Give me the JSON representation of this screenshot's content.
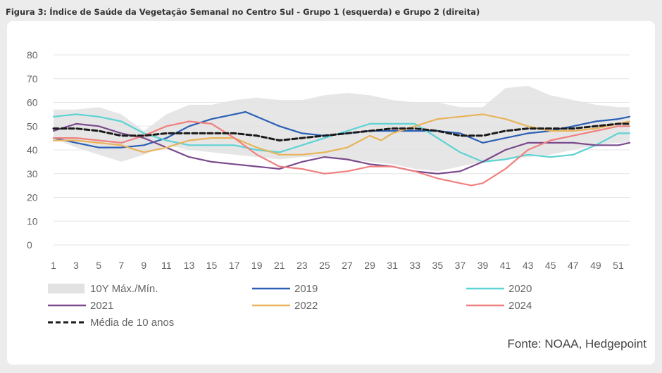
{
  "title": "Figura 3: Índice de Saúde da Vegetação Semanal no Centro Sul - Grupo 1 (esquerda) e Grupo 2 (direita)",
  "source": "Fonte: NOAA, Hedgepoint",
  "chart_data": {
    "type": "line",
    "xlim": [
      1,
      52
    ],
    "ylim": [
      0,
      80
    ],
    "x_ticks": [
      1,
      3,
      5,
      7,
      9,
      11,
      13,
      15,
      17,
      19,
      21,
      23,
      25,
      27,
      29,
      31,
      33,
      35,
      37,
      39,
      41,
      43,
      45,
      47,
      49,
      51
    ],
    "y_ticks": [
      0,
      10,
      20,
      30,
      40,
      50,
      60,
      70,
      80
    ],
    "grid": true,
    "band": {
      "name": "10Y Máx./Mín.",
      "color": "#e2e2e2",
      "upper": [
        [
          1,
          57
        ],
        [
          3,
          57
        ],
        [
          5,
          58
        ],
        [
          7,
          55
        ],
        [
          9,
          48
        ],
        [
          11,
          55
        ],
        [
          13,
          59
        ],
        [
          15,
          59
        ],
        [
          17,
          61
        ],
        [
          19,
          62
        ],
        [
          21,
          61
        ],
        [
          23,
          61
        ],
        [
          25,
          63
        ],
        [
          27,
          64
        ],
        [
          29,
          63
        ],
        [
          31,
          61
        ],
        [
          33,
          60
        ],
        [
          35,
          60
        ],
        [
          37,
          58
        ],
        [
          39,
          58
        ],
        [
          41,
          66
        ],
        [
          43,
          67
        ],
        [
          45,
          63
        ],
        [
          47,
          61
        ],
        [
          49,
          59
        ],
        [
          51,
          58
        ],
        [
          52,
          58
        ]
      ],
      "lower": [
        [
          1,
          45
        ],
        [
          3,
          41
        ],
        [
          5,
          38
        ],
        [
          7,
          35
        ],
        [
          9,
          38
        ],
        [
          11,
          42
        ],
        [
          13,
          40
        ],
        [
          15,
          39
        ],
        [
          17,
          38
        ],
        [
          19,
          37
        ],
        [
          21,
          36
        ],
        [
          23,
          37
        ],
        [
          25,
          37
        ],
        [
          27,
          36
        ],
        [
          29,
          35
        ],
        [
          31,
          34
        ],
        [
          33,
          32
        ],
        [
          35,
          31
        ],
        [
          37,
          33
        ],
        [
          39,
          35
        ],
        [
          41,
          36
        ],
        [
          43,
          37
        ],
        [
          45,
          38
        ],
        [
          47,
          40
        ],
        [
          49,
          42
        ],
        [
          51,
          43
        ],
        [
          52,
          43
        ]
      ]
    },
    "series": [
      {
        "name": "2019",
        "color": "#2b5fb4",
        "values": [
          [
            1,
            45
          ],
          [
            3,
            43
          ],
          [
            5,
            41
          ],
          [
            7,
            41
          ],
          [
            9,
            42
          ],
          [
            11,
            45
          ],
          [
            13,
            50
          ],
          [
            15,
            53
          ],
          [
            17,
            55
          ],
          [
            18,
            56
          ],
          [
            19,
            54
          ],
          [
            21,
            50
          ],
          [
            23,
            47
          ],
          [
            25,
            46
          ],
          [
            27,
            47
          ],
          [
            29,
            48
          ],
          [
            31,
            48
          ],
          [
            33,
            48
          ],
          [
            35,
            48
          ],
          [
            37,
            47
          ],
          [
            39,
            43
          ],
          [
            41,
            45
          ],
          [
            43,
            47
          ],
          [
            45,
            48
          ],
          [
            47,
            50
          ],
          [
            49,
            52
          ],
          [
            51,
            53
          ],
          [
            52,
            54
          ]
        ]
      },
      {
        "name": "2020",
        "color": "#5ed3d3",
        "values": [
          [
            1,
            54
          ],
          [
            3,
            55
          ],
          [
            5,
            54
          ],
          [
            7,
            52
          ],
          [
            9,
            47
          ],
          [
            11,
            44
          ],
          [
            13,
            42
          ],
          [
            15,
            42
          ],
          [
            17,
            42
          ],
          [
            19,
            40
          ],
          [
            21,
            39
          ],
          [
            23,
            42
          ],
          [
            25,
            45
          ],
          [
            27,
            48
          ],
          [
            29,
            51
          ],
          [
            31,
            51
          ],
          [
            33,
            51
          ],
          [
            35,
            45
          ],
          [
            37,
            39
          ],
          [
            39,
            35
          ],
          [
            41,
            36
          ],
          [
            43,
            38
          ],
          [
            45,
            37
          ],
          [
            47,
            38
          ],
          [
            49,
            42
          ],
          [
            51,
            47
          ],
          [
            52,
            47
          ]
        ]
      },
      {
        "name": "2021",
        "color": "#7a4a8c",
        "values": [
          [
            1,
            48
          ],
          [
            3,
            51
          ],
          [
            5,
            50
          ],
          [
            7,
            47
          ],
          [
            9,
            45
          ],
          [
            11,
            41
          ],
          [
            13,
            37
          ],
          [
            15,
            35
          ],
          [
            17,
            34
          ],
          [
            19,
            33
          ],
          [
            21,
            32
          ],
          [
            23,
            35
          ],
          [
            25,
            37
          ],
          [
            27,
            36
          ],
          [
            29,
            34
          ],
          [
            31,
            33
          ],
          [
            33,
            31
          ],
          [
            35,
            30
          ],
          [
            37,
            31
          ],
          [
            39,
            35
          ],
          [
            41,
            40
          ],
          [
            43,
            43
          ],
          [
            45,
            43
          ],
          [
            47,
            43
          ],
          [
            49,
            42
          ],
          [
            51,
            42
          ],
          [
            52,
            43
          ]
        ]
      },
      {
        "name": "2022",
        "color": "#e8b35a",
        "values": [
          [
            1,
            44
          ],
          [
            3,
            44
          ],
          [
            5,
            43
          ],
          [
            7,
            42
          ],
          [
            9,
            39
          ],
          [
            11,
            41
          ],
          [
            13,
            44
          ],
          [
            15,
            45
          ],
          [
            17,
            45
          ],
          [
            19,
            41
          ],
          [
            21,
            38
          ],
          [
            23,
            38
          ],
          [
            25,
            39
          ],
          [
            27,
            41
          ],
          [
            29,
            46
          ],
          [
            30,
            44
          ],
          [
            31,
            47
          ],
          [
            33,
            50
          ],
          [
            35,
            53
          ],
          [
            37,
            54
          ],
          [
            39,
            55
          ],
          [
            41,
            53
          ],
          [
            43,
            50
          ],
          [
            45,
            48
          ],
          [
            47,
            48
          ],
          [
            49,
            49
          ],
          [
            51,
            51
          ],
          [
            52,
            52
          ]
        ]
      },
      {
        "name": "2024",
        "color": "#f08080",
        "values": [
          [
            1,
            45
          ],
          [
            3,
            45
          ],
          [
            5,
            44
          ],
          [
            7,
            43
          ],
          [
            9,
            46
          ],
          [
            11,
            50
          ],
          [
            13,
            52
          ],
          [
            15,
            51
          ],
          [
            17,
            45
          ],
          [
            19,
            38
          ],
          [
            21,
            33
          ],
          [
            23,
            32
          ],
          [
            25,
            30
          ],
          [
            27,
            31
          ],
          [
            29,
            33
          ],
          [
            31,
            33
          ],
          [
            33,
            31
          ],
          [
            35,
            28
          ],
          [
            37,
            26
          ],
          [
            38,
            25
          ],
          [
            39,
            26
          ],
          [
            41,
            32
          ],
          [
            43,
            40
          ],
          [
            45,
            44
          ],
          [
            47,
            46
          ],
          [
            49,
            48
          ],
          [
            51,
            50
          ],
          [
            52,
            50
          ]
        ]
      },
      {
        "name": "Média de 10 anos",
        "color": "#1a1a1a",
        "dashed": true,
        "values": [
          [
            1,
            49
          ],
          [
            3,
            49
          ],
          [
            5,
            48
          ],
          [
            7,
            46
          ],
          [
            9,
            46
          ],
          [
            11,
            47
          ],
          [
            13,
            47
          ],
          [
            15,
            47
          ],
          [
            17,
            47
          ],
          [
            19,
            46
          ],
          [
            21,
            44
          ],
          [
            23,
            45
          ],
          [
            25,
            46
          ],
          [
            27,
            47
          ],
          [
            29,
            48
          ],
          [
            31,
            49
          ],
          [
            33,
            49
          ],
          [
            35,
            48
          ],
          [
            37,
            46
          ],
          [
            39,
            46
          ],
          [
            41,
            48
          ],
          [
            43,
            49
          ],
          [
            45,
            49
          ],
          [
            47,
            49
          ],
          [
            49,
            50
          ],
          [
            51,
            51
          ],
          [
            52,
            51
          ]
        ]
      }
    ],
    "legend": [
      {
        "label": "10Y Máx./Mín.",
        "kind": "band",
        "color": "#e2e2e2"
      },
      {
        "label": "2019",
        "kind": "line",
        "color": "#2b5fb4"
      },
      {
        "label": "2020",
        "kind": "line",
        "color": "#5ed3d3"
      },
      {
        "label": "2021",
        "kind": "line",
        "color": "#7a4a8c"
      },
      {
        "label": "2022",
        "kind": "line",
        "color": "#e8b35a"
      },
      {
        "label": "2024",
        "kind": "line",
        "color": "#f08080"
      },
      {
        "label": "Média de 10 anos",
        "kind": "dashed",
        "color": "#1a1a1a"
      }
    ],
    "legend_placement": "bottom"
  }
}
